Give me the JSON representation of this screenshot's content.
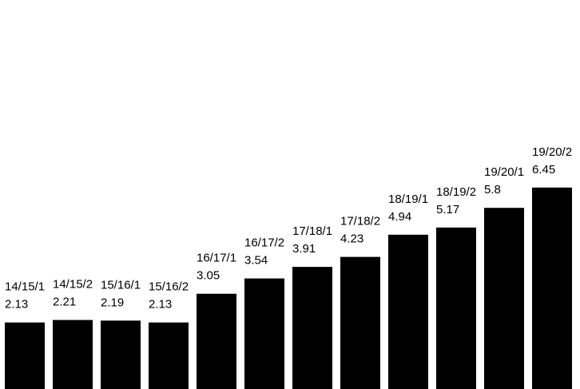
{
  "chart_data": {
    "type": "bar",
    "title": "",
    "xlabel": "",
    "ylabel": "",
    "ylim": [
      0,
      8
    ],
    "grid": false,
    "legend": "none",
    "bar_color": "#000000",
    "categories": [
      "14/15/1",
      "14/15/2",
      "15/16/1",
      "15/16/2",
      "16/17/1",
      "16/17/2",
      "17/18/1",
      "17/18/2",
      "18/19/1",
      "18/19/2",
      "19/20/1",
      "19/20/2"
    ],
    "values": [
      2.13,
      2.21,
      2.19,
      2.13,
      3.05,
      3.54,
      3.91,
      4.23,
      4.94,
      5.17,
      5.8,
      6.45
    ],
    "value_labels": [
      "2.13",
      "2.21",
      "2.19",
      "2.13",
      "3.05",
      "3.54",
      "3.91",
      "4.23",
      "4.94",
      "5.17",
      "5.8",
      "6.45"
    ]
  }
}
